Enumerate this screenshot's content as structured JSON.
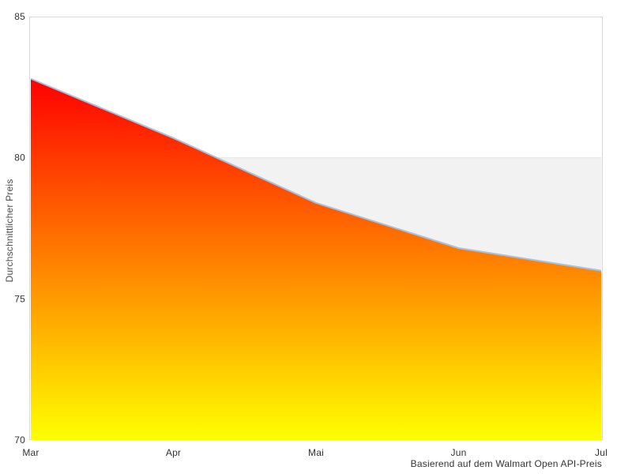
{
  "chart_data": {
    "type": "area",
    "categories": [
      "Mar",
      "Apr",
      "Mai",
      "Jun",
      "Jul"
    ],
    "values": [
      82.8,
      80.7,
      78.4,
      76.8,
      76.0
    ],
    "series_name": "Durchschnittlicher Preis",
    "title": "",
    "xlabel": "",
    "ylabel": "Durchschnittlicher Preis",
    "caption": "Basierend auf dem Walmart Open API-Preis",
    "ylim": [
      70,
      85
    ],
    "y_ticks": [
      70,
      75,
      80,
      85
    ],
    "plot_band": {
      "from": 75,
      "to": 80
    },
    "legend": "none",
    "grid": "plot-band-only",
    "colors": {
      "gradient_top": "#ff0000",
      "gradient_bottom": "#ffff00",
      "line": "#a3c3e3",
      "band": "#f2f2f2",
      "band_edge": "#e6e6e6",
      "plot_border": "#d9d9d9",
      "tick_text": "#333333",
      "axis_title_text": "#4d4d4d",
      "background": "#ffffff"
    }
  }
}
